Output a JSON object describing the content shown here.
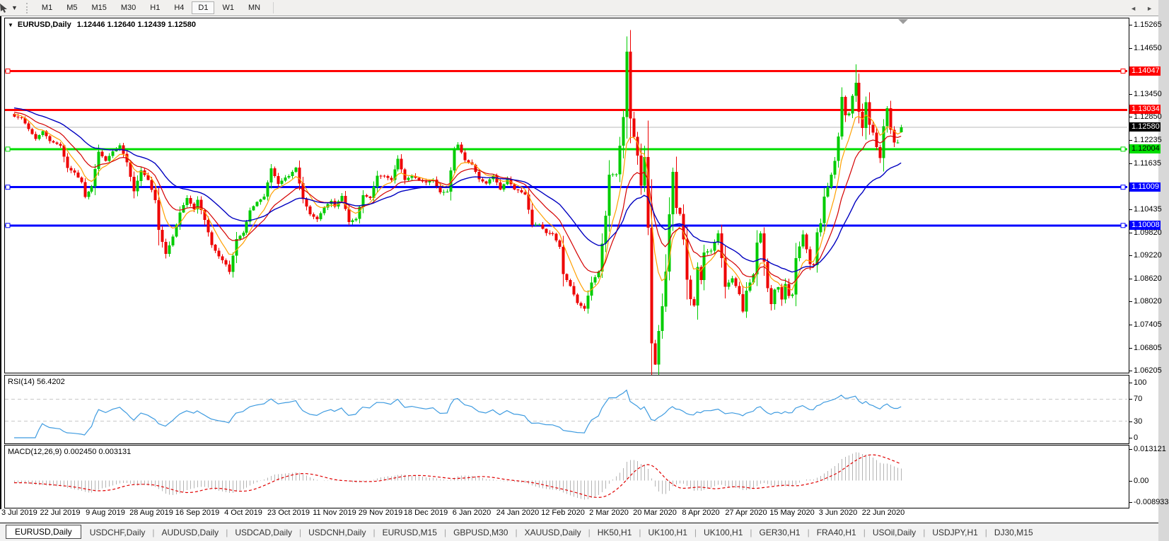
{
  "toolbar": {
    "timeframes": [
      {
        "label": "M1",
        "active": false
      },
      {
        "label": "M5",
        "active": false
      },
      {
        "label": "M15",
        "active": false
      },
      {
        "label": "M30",
        "active": false
      },
      {
        "label": "H1",
        "active": false
      },
      {
        "label": "H4",
        "active": false
      },
      {
        "label": "D1",
        "active": true
      },
      {
        "label": "W1",
        "active": false
      },
      {
        "label": "MN",
        "active": false
      }
    ]
  },
  "icons": {
    "collapse": "▼",
    "dropdown": "▼",
    "tab_left": "◄",
    "tab_right": "►"
  },
  "chart": {
    "title_symbol": "EURUSD,Daily",
    "title_ohlc": "1.12446 1.12640 1.12439 1.12580",
    "rsi_label": "RSI(14) 56.4202",
    "macd_label": "MACD(12,26,9) 0.002450 0.003131"
  },
  "tabs": [
    {
      "label": "EURUSD,Daily",
      "active": true
    },
    {
      "label": "USDCHF,Daily",
      "active": false
    },
    {
      "label": "AUDUSD,Daily",
      "active": false
    },
    {
      "label": "USDCAD,Daily",
      "active": false
    },
    {
      "label": "USDCNH,Daily",
      "active": false
    },
    {
      "label": "EURUSD,M15",
      "active": false
    },
    {
      "label": "GBPUSD,M30",
      "active": false
    },
    {
      "label": "XAUUSD,Daily",
      "active": false
    },
    {
      "label": "HK50,H1",
      "active": false
    },
    {
      "label": "UK100,H1",
      "active": false
    },
    {
      "label": "UK100,H1",
      "active": false
    },
    {
      "label": "GER30,H1",
      "active": false
    },
    {
      "label": "FRA40,H1",
      "active": false
    },
    {
      "label": "USOil,Daily",
      "active": false
    },
    {
      "label": "USDJPY,H1",
      "active": false
    },
    {
      "label": "DJ30,M15",
      "active": false
    }
  ],
  "chart_data": {
    "type": "candlestick",
    "symbol": "EURUSD",
    "timeframe": "Daily",
    "ohlc_display": {
      "open": "1.12446",
      "high": "1.12640",
      "low": "1.12439",
      "close": "1.12580"
    },
    "current_price": 1.1258,
    "colors": {
      "up": "#00CC00",
      "down": "#EE0000",
      "ma_fast": "#FFA000",
      "ma_mid": "#D40000",
      "ma_slow": "#0000C0",
      "rsi": "#3E9BE0",
      "macd_hist": "#B4B4B4",
      "macd_signal": "#E00000",
      "price_line": "#B8B8B8"
    },
    "price_axis": {
      "top": 1.15265,
      "bottom": 1.06205,
      "ticks": [
        "1.15265",
        "1.14650",
        "1.13450",
        "1.12850",
        "1.12235",
        "1.11635",
        "1.10435",
        "1.09820",
        "1.09220",
        "1.08620",
        "1.08020",
        "1.07405",
        "1.06805",
        "1.06205"
      ],
      "badges": [
        {
          "value": "1.14047",
          "bg": "#FF0000",
          "fg": "#FFFFFF"
        },
        {
          "value": "1.13034",
          "bg": "#FF0000",
          "fg": "#FFFFFF"
        },
        {
          "value": "1.12580",
          "bg": "#000000",
          "fg": "#FFFFFF"
        },
        {
          "value": "1.12004",
          "bg": "#00DD00",
          "fg": "#000000"
        },
        {
          "value": "1.11009",
          "bg": "#0000FF",
          "fg": "#FFFFFF"
        },
        {
          "value": "1.10008",
          "bg": "#0000FF",
          "fg": "#FFFFFF"
        }
      ]
    },
    "levels": [
      {
        "price": 1.14047,
        "color": "#FF0000",
        "selected": true
      },
      {
        "price": 1.13034,
        "color": "#FF0000",
        "selected": false
      },
      {
        "price": 1.12004,
        "color": "#00DD00",
        "selected": true
      },
      {
        "price": 1.11009,
        "color": "#0000FF",
        "selected": true
      },
      {
        "price": 1.10008,
        "color": "#0000FF",
        "selected": true
      }
    ],
    "x_labels": [
      "3 Jul 2019",
      "22 Jul 2019",
      "9 Aug 2019",
      "28 Aug 2019",
      "16 Sep 2019",
      "4 Oct 2019",
      "23 Oct 2019",
      "11 Nov 2019",
      "29 Nov 2019",
      "18 Dec 2019",
      "6 Jan 2020",
      "24 Jan 2020",
      "12 Feb 2020",
      "2 Mar 2020",
      "20 Mar 2020",
      "8 Apr 2020",
      "27 Apr 2020",
      "15 May 2020",
      "3 Jun 2020",
      "22 Jun 2020"
    ],
    "bars_per_label": 13,
    "bar_count": 253,
    "anchors": [
      [
        0,
        1.1285
      ],
      [
        2,
        1.1282
      ],
      [
        4,
        1.1253
      ],
      [
        6,
        1.1227
      ],
      [
        8,
        1.1247
      ],
      [
        10,
        1.1222
      ],
      [
        13,
        1.121
      ],
      [
        15,
        1.1151
      ],
      [
        17,
        1.1139
      ],
      [
        19,
        1.1114
      ],
      [
        20,
        1.1075
      ],
      [
        22,
        1.1103
      ],
      [
        24,
        1.1194
      ],
      [
        26,
        1.117
      ],
      [
        28,
        1.1195
      ],
      [
        30,
        1.121
      ],
      [
        32,
        1.1166
      ],
      [
        34,
        1.109
      ],
      [
        36,
        1.1145
      ],
      [
        38,
        1.112
      ],
      [
        40,
        1.1067
      ],
      [
        41,
        1.0989
      ],
      [
        43,
        1.0926
      ],
      [
        45,
        1.0972
      ],
      [
        47,
        1.1035
      ],
      [
        49,
        1.1073
      ],
      [
        51,
        1.1043
      ],
      [
        52,
        1.1068
      ],
      [
        54,
        1.1015
      ],
      [
        56,
        1.095
      ],
      [
        58,
        1.092
      ],
      [
        60,
        1.0899
      ],
      [
        61,
        1.0879
      ],
      [
        63,
        1.0965
      ],
      [
        65,
        1.0982
      ],
      [
        67,
        1.104
      ],
      [
        69,
        1.1062
      ],
      [
        71,
        1.1076
      ],
      [
        73,
        1.115
      ],
      [
        75,
        1.111
      ],
      [
        77,
        1.1126
      ],
      [
        78,
        1.113
      ],
      [
        80,
        1.1152
      ],
      [
        82,
        1.107
      ],
      [
        84,
        1.103
      ],
      [
        86,
        1.1017
      ],
      [
        88,
        1.1048
      ],
      [
        90,
        1.1065
      ],
      [
        91,
        1.105
      ],
      [
        93,
        1.1078
      ],
      [
        95,
        1.101
      ],
      [
        97,
        1.1018
      ],
      [
        99,
        1.108
      ],
      [
        101,
        1.1073
      ],
      [
        103,
        1.1131
      ],
      [
        105,
        1.113
      ],
      [
        107,
        1.112
      ],
      [
        109,
        1.1175
      ],
      [
        111,
        1.112
      ],
      [
        113,
        1.113
      ],
      [
        115,
        1.112
      ],
      [
        117,
        1.1113
      ],
      [
        119,
        1.1121
      ],
      [
        121,
        1.1087
      ],
      [
        123,
        1.1089
      ],
      [
        125,
        1.12
      ],
      [
        126,
        1.1212
      ],
      [
        128,
        1.1172
      ],
      [
        130,
        1.116
      ],
      [
        132,
        1.1122
      ],
      [
        134,
        1.1111
      ],
      [
        136,
        1.1132
      ],
      [
        138,
        1.1095
      ],
      [
        140,
        1.1122
      ],
      [
        142,
        1.1095
      ],
      [
        143,
        1.1093
      ],
      [
        145,
        1.1082
      ],
      [
        147,
        1.1002
      ],
      [
        149,
        1.1003
      ],
      [
        151,
        1.0981
      ],
      [
        153,
        1.0979
      ],
      [
        155,
        1.0945
      ],
      [
        156,
        1.0874
      ],
      [
        158,
        1.0842
      ],
      [
        160,
        1.0798
      ],
      [
        162,
        1.0783
      ],
      [
        164,
        1.0851
      ],
      [
        166,
        1.088
      ],
      [
        168,
        1.1026
      ],
      [
        169,
        1.1134
      ],
      [
        171,
        1.1135
      ],
      [
        173,
        1.1284
      ],
      [
        174,
        1.1456
      ],
      [
        175,
        1.1281
      ],
      [
        177,
        1.1184
      ],
      [
        178,
        1.1105
      ],
      [
        179,
        1.118
      ],
      [
        180,
        1.0995
      ],
      [
        181,
        1.0692
      ],
      [
        182,
        1.0637
      ],
      [
        183,
        1.0725
      ],
      [
        184,
        1.0789
      ],
      [
        185,
        1.088
      ],
      [
        186,
        1.103
      ],
      [
        187,
        1.1141
      ],
      [
        188,
        1.1047
      ],
      [
        189,
        1.1031
      ],
      [
        190,
        1.0964
      ],
      [
        191,
        1.0859
      ],
      [
        192,
        1.0808
      ],
      [
        193,
        1.0791
      ],
      [
        194,
        1.0892
      ],
      [
        195,
        1.0858
      ],
      [
        196,
        1.093
      ],
      [
        198,
        1.0935
      ],
      [
        200,
        1.098
      ],
      [
        201,
        1.0915
      ],
      [
        202,
        1.084
      ],
      [
        204,
        1.0863
      ],
      [
        206,
        1.0821
      ],
      [
        207,
        1.0776
      ],
      [
        208,
        1.083
      ],
      [
        210,
        1.0873
      ],
      [
        211,
        1.0956
      ],
      [
        212,
        1.098
      ],
      [
        213,
        1.0906
      ],
      [
        214,
        1.0837
      ],
      [
        215,
        1.0795
      ],
      [
        216,
        1.0833
      ],
      [
        217,
        1.0839
      ],
      [
        218,
        1.0807
      ],
      [
        219,
        1.0848
      ],
      [
        220,
        1.0816
      ],
      [
        221,
        1.082
      ],
      [
        222,
        1.0915
      ],
      [
        224,
        1.0977
      ],
      [
        226,
        1.09
      ],
      [
        227,
        1.0897
      ],
      [
        228,
        1.0983
      ],
      [
        229,
        1.1007
      ],
      [
        230,
        1.1076
      ],
      [
        231,
        1.1101
      ],
      [
        232,
        1.1134
      ],
      [
        233,
        1.117
      ],
      [
        234,
        1.1234
      ],
      [
        235,
        1.1337
      ],
      [
        236,
        1.1289
      ],
      [
        237,
        1.1294
      ],
      [
        238,
        1.134
      ],
      [
        239,
        1.1374
      ],
      [
        240,
        1.1298
      ],
      [
        241,
        1.1256
      ],
      [
        242,
        1.1323
      ],
      [
        243,
        1.1264
      ],
      [
        244,
        1.1244
      ],
      [
        245,
        1.1206
      ],
      [
        246,
        1.1177
      ],
      [
        247,
        1.126
      ],
      [
        248,
        1.1308
      ],
      [
        249,
        1.1251
      ],
      [
        250,
        1.1218
      ],
      [
        251,
        1.1218
      ],
      [
        252,
        1.1258
      ]
    ],
    "wick_overrides": {
      "174": {
        "high": 1.1495
      },
      "239": {
        "high": 1.1422
      },
      "182": {
        "low": 1.0636
      },
      "252": {
        "open": 1.12446,
        "high": 1.1264,
        "low": 1.12439,
        "close": 1.1258
      }
    },
    "moving_averages": [
      {
        "name": "fast",
        "period": 7,
        "color": "#FFA000"
      },
      {
        "name": "mid",
        "period": 15,
        "color": "#D40000"
      },
      {
        "name": "slow",
        "period": 33,
        "color": "#0000C0"
      }
    ],
    "rsi": {
      "period": 14,
      "current": 56.4202,
      "axis": [
        "100",
        "70",
        "30",
        "0"
      ],
      "dashed_levels": [
        70,
        30
      ]
    },
    "macd": {
      "fast": 12,
      "slow": 26,
      "signal": 9,
      "value": 0.00245,
      "signal_value": 0.003131,
      "axis": [
        {
          "label": "0.013121",
          "value": 0.013121
        },
        {
          "label": "0.00",
          "value": 0
        },
        {
          "label": "-0.008933",
          "value": -0.008933
        }
      ]
    }
  }
}
